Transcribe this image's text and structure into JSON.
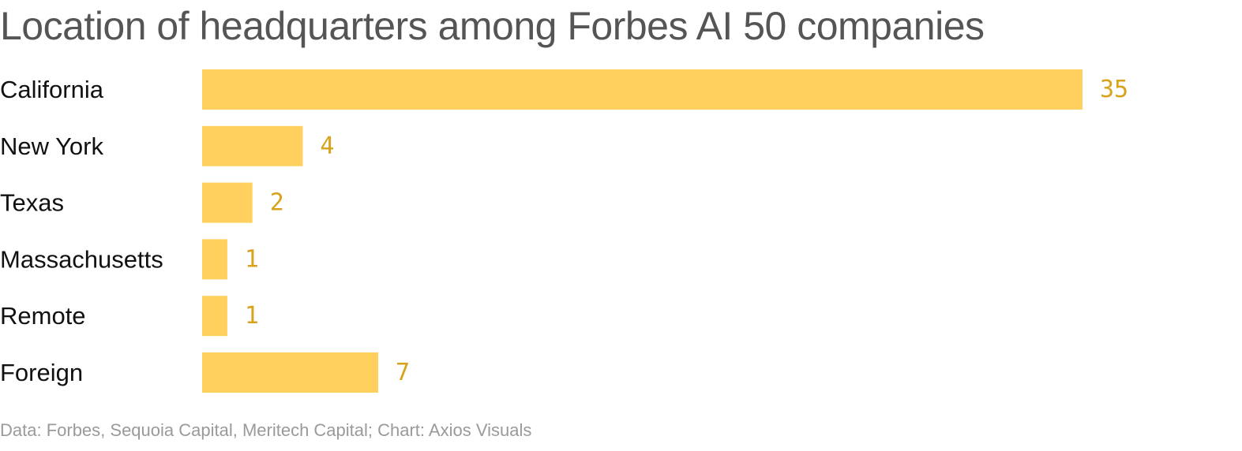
{
  "colors": {
    "bar": "#ffd05e",
    "value_label": "#d9a21b",
    "title": "#555555",
    "category_label": "#111111",
    "source": "#9a9a9a"
  },
  "chart_data": {
    "type": "bar",
    "orientation": "horizontal",
    "title": "Location of headquarters among Forbes AI 50 companies",
    "categories": [
      "California",
      "New York",
      "Texas",
      "Massachusetts",
      "Remote",
      "Foreign"
    ],
    "values": [
      35,
      4,
      2,
      1,
      1,
      7
    ],
    "data_labels": [
      "35",
      "4",
      "2",
      "1",
      "1",
      "7"
    ],
    "xlim": [
      0,
      35
    ],
    "grid": false,
    "legend": "none",
    "source": "Data: Forbes, Sequoia Capital, Meritech Capital; Chart: Axios Visuals"
  }
}
